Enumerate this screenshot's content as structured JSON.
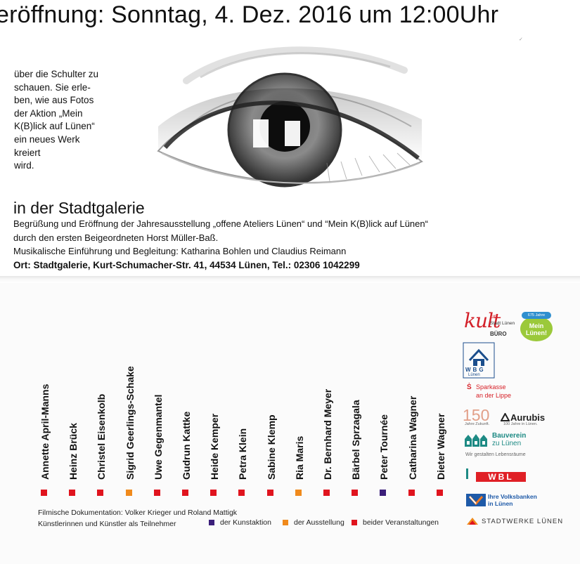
{
  "top": {
    "headline": "eröffnung: Sonntag, 4. Dez. 2016 um 12:00Uhr",
    "intro_lines": [
      "über die Schulter zu",
      "schauen. Sie erle-",
      "ben, wie aus Fotos",
      "der Aktion „Mein",
      "K(B)lick auf Lünen“",
      "ein neues Werk",
      "kreiert",
      "wird."
    ],
    "venue_title": "in der Stadtgalerie",
    "event_lines": [
      "Begrüßung und Eröffnung der Jahresausstellung „offene Ateliers Lünen“ und “Mein K(B)lick auf Lünen“",
      "durch den ersten Beigeordneten Horst Müller-Baß.",
      "Musikalische Einführung und Begleitung: Katharina Bohlen und Claudius Reimann"
    ],
    "location_line": "Ort: Stadtgalerie, Kurt-Schumacher-Str. 41, 44534 Lünen, Tel.: 02306 1042299",
    "eye_illustration": "eye-illustration"
  },
  "artists": [
    {
      "name": "Annette April-Manns",
      "category": "beide"
    },
    {
      "name": "Heinz Brück",
      "category": "beide"
    },
    {
      "name": "Christel Eisenkolb",
      "category": "beide"
    },
    {
      "name": "Sigrid Geerlings-Schake",
      "category": "ausstellung"
    },
    {
      "name": "Uwe Gegenmantel",
      "category": "beide"
    },
    {
      "name": "Gudrun Kattke",
      "category": "beide"
    },
    {
      "name": "Heide Kemper",
      "category": "beide"
    },
    {
      "name": "Petra Klein",
      "category": "beide"
    },
    {
      "name": "Sabine Klemp",
      "category": "beide"
    },
    {
      "name": "Ria Maris",
      "category": "ausstellung"
    },
    {
      "name": "Dr. Bernhard Meyer",
      "category": "beide"
    },
    {
      "name": "Bärbel Sprzagala",
      "category": "beide"
    },
    {
      "name": "Peter Tournée",
      "category": "kunstaktion"
    },
    {
      "name": "Catharina Wagner",
      "category": "beide"
    },
    {
      "name": "Dieter Wagner",
      "category": "beide"
    }
  ],
  "credits": {
    "film": "Filmische Dokumentation: Volker Krieger und Roland Mattigk",
    "participants": "Künstlerinnen und Künstler als Teilnehmer"
  },
  "legend": [
    {
      "key": "kunstaktion",
      "label": "der Kunstaktion",
      "color": "#3b1f7a"
    },
    {
      "key": "ausstellung",
      "label": "der Ausstellung",
      "color": "#f08a1c"
    },
    {
      "key": "beide",
      "label": "beider Veranstaltungen",
      "color": "#e0141e"
    }
  ],
  "sponsors": {
    "kult": {
      "word": "kult",
      "sup": "ur",
      "lines": [
        "Stadt Lünen",
        "BÜRO"
      ]
    },
    "mein_luenen": {
      "ribbon": "675 Jahre",
      "text": [
        "Mein",
        "Lünen!"
      ]
    },
    "wbg": {
      "name": "WBG",
      "sub": "Lünen"
    },
    "sparkasse": {
      "lines": [
        "Sparkasse",
        "an der Lippe"
      ]
    },
    "aurubis": {
      "number": "150",
      "name": "Aurubis",
      "left_small": "Jahre Zukunft.",
      "right_small": "100 Jahre in Lünen."
    },
    "bauverein": {
      "lines": [
        "Bauverein",
        "zu Lünen"
      ],
      "tagline": "Wir gestalten Lebensräume"
    },
    "wbl": {
      "name": "WBL"
    },
    "volksbank": {
      "lines": [
        "Ihre Volksbanken",
        "in Lünen"
      ]
    },
    "stadtwerke": {
      "name": "STADTWERKE LÜNEN"
    }
  },
  "colors": {
    "red": "#e0141e",
    "orange": "#f08a1c",
    "purple": "#3b1f7a"
  }
}
